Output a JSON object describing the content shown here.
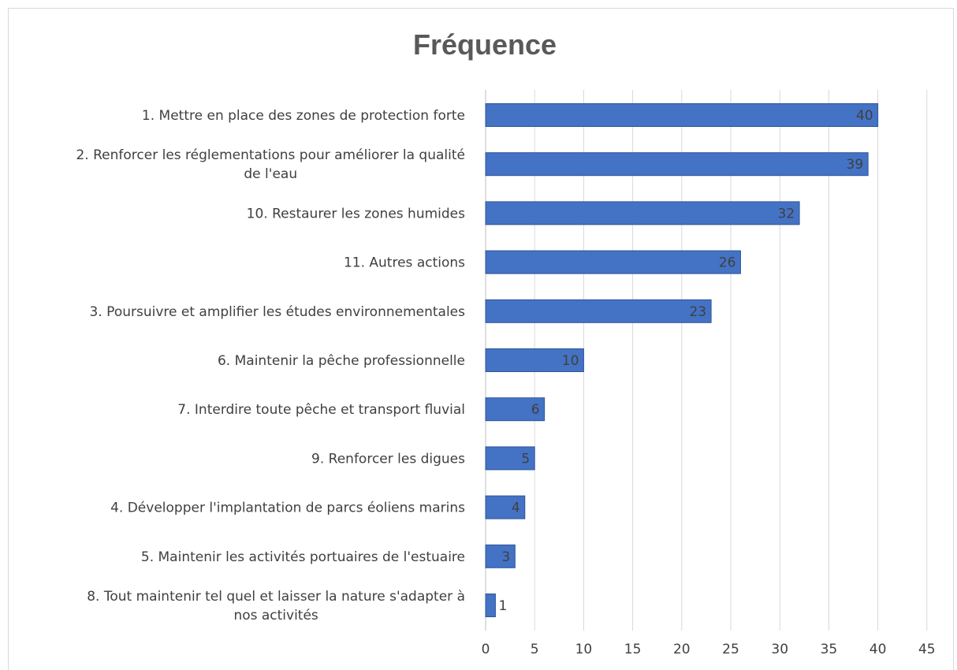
{
  "chart_data": {
    "type": "bar",
    "orientation": "horizontal",
    "title": "Fréquence",
    "xlabel": "",
    "ylabel": "",
    "categories": [
      [
        "1. Mettre en place des zones de protection forte"
      ],
      [
        "2. Renforcer les réglementations pour améliorer la qualité",
        "de l'eau"
      ],
      [
        "10. Restaurer les zones humides"
      ],
      [
        "11. Autres actions"
      ],
      [
        "3. Poursuivre et amplifier les études environnementales"
      ],
      [
        "6. Maintenir la pêche professionnelle"
      ],
      [
        "7. Interdire toute pêche et transport fluvial"
      ],
      [
        "9. Renforcer les digues"
      ],
      [
        "4. Développer l'implantation de parcs éoliens marins"
      ],
      [
        "5. Maintenir les activités portuaires de l'estuaire"
      ],
      [
        "8. Tout maintenir tel quel et laisser la nature s'adapter à",
        "nos activités"
      ]
    ],
    "values": [
      40,
      39,
      32,
      26,
      23,
      10,
      6,
      5,
      4,
      3,
      1
    ],
    "xlim": [
      0,
      45
    ],
    "xticks": [
      "0",
      "5",
      "10",
      "15",
      "20",
      "25",
      "30",
      "35",
      "40",
      "45"
    ],
    "grid": true,
    "legend": "none",
    "bar_color": "#4472C4",
    "data_labels": true
  }
}
